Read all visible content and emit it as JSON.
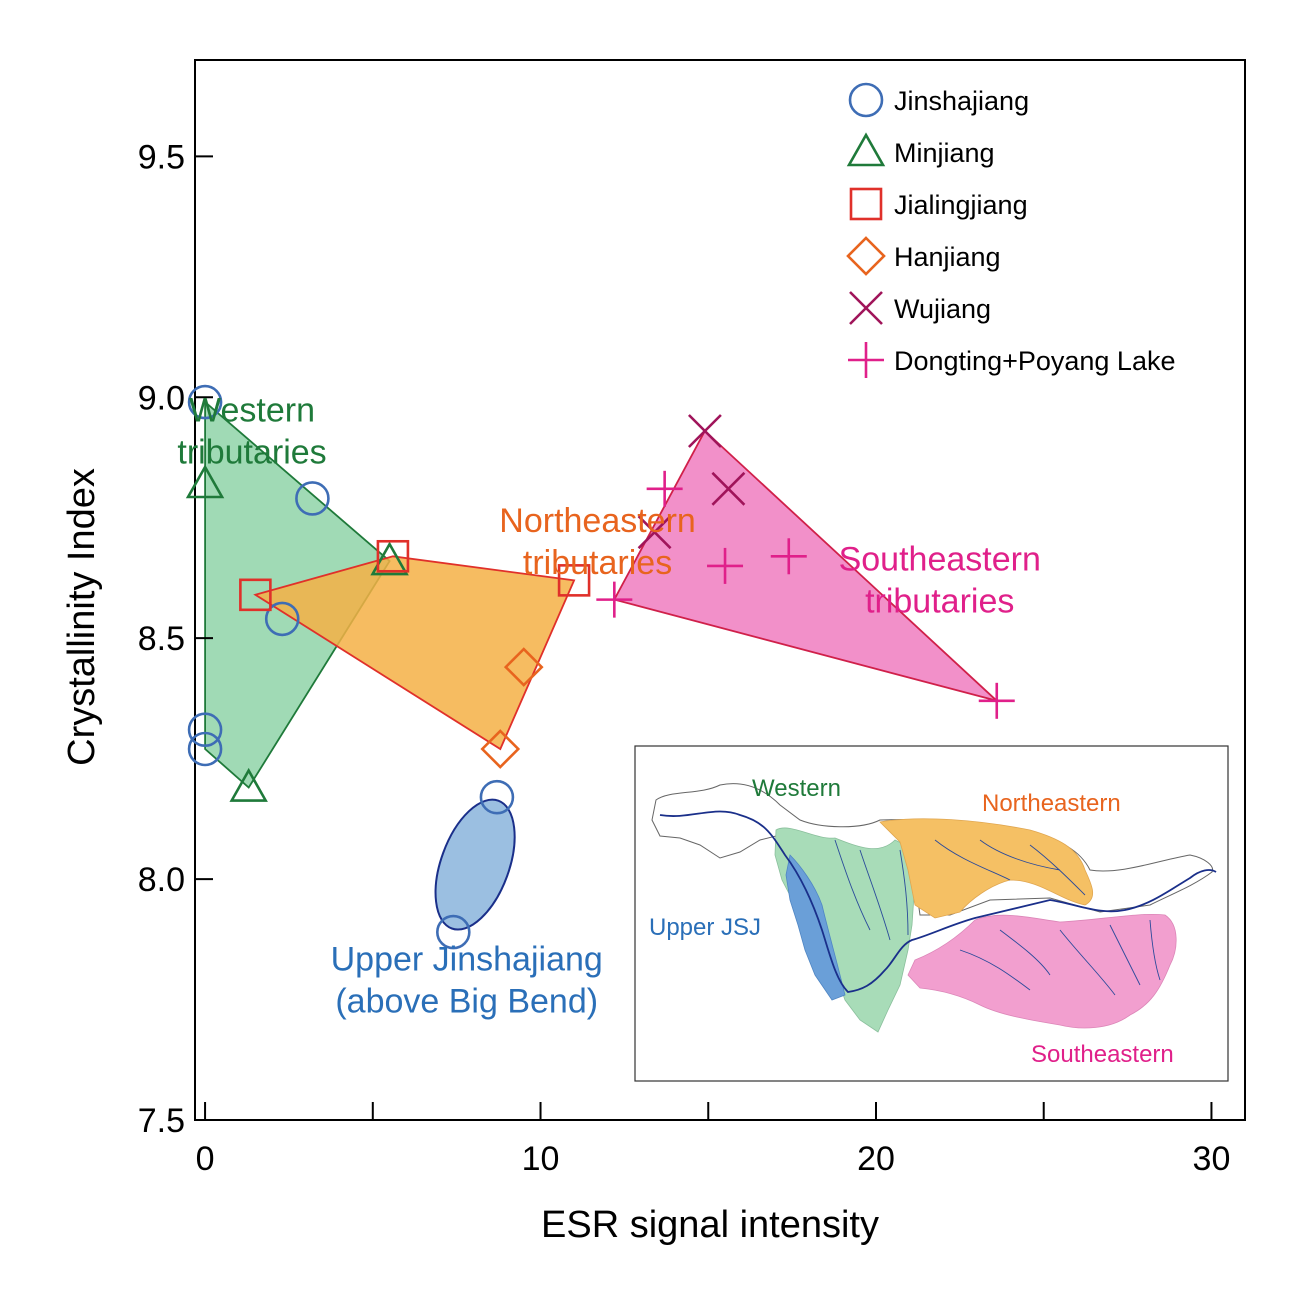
{
  "chart_data": {
    "type": "scatter",
    "xlabel": "ESR signal intensity",
    "ylabel": "Crystallinity Index",
    "xlim": [
      -0.3,
      31
    ],
    "ylim": [
      7.5,
      9.7
    ],
    "x_ticks": [
      0,
      10,
      20,
      30
    ],
    "x_minor_ticks": [
      5,
      15,
      25
    ],
    "y_ticks": [
      7.5,
      8.0,
      8.5,
      9.0,
      9.5
    ],
    "x_tick_labels": [
      "0",
      "10",
      "20",
      "30"
    ],
    "y_tick_labels": [
      "7.5",
      "8.0",
      "8.5",
      "9.0",
      "9.5"
    ],
    "grid": false,
    "legend_position": "top-right",
    "series": [
      {
        "name": "Jinshajiang",
        "marker": "circle",
        "color": "#3e6db5",
        "points": [
          [
            0.0,
            8.99
          ],
          [
            3.2,
            8.79
          ],
          [
            2.3,
            8.54
          ],
          [
            0.0,
            8.31
          ],
          [
            0.0,
            8.27
          ],
          [
            8.7,
            8.17
          ],
          [
            7.4,
            7.89
          ]
        ]
      },
      {
        "name": "Minjiang",
        "marker": "triangle",
        "color": "#1f7a3a",
        "points": [
          [
            0.0,
            8.82
          ],
          [
            5.5,
            8.66
          ],
          [
            1.3,
            8.19
          ]
        ]
      },
      {
        "name": "Jialingjiang",
        "marker": "square",
        "color": "#e0302a",
        "points": [
          [
            1.5,
            8.59
          ],
          [
            5.6,
            8.67
          ],
          [
            11.0,
            8.62
          ]
        ]
      },
      {
        "name": "Hanjiang",
        "marker": "diamond",
        "color": "#e8641e",
        "points": [
          [
            9.5,
            8.44
          ],
          [
            8.8,
            8.27
          ]
        ]
      },
      {
        "name": "Wujiang",
        "marker": "x",
        "color": "#a0145a",
        "points": [
          [
            14.9,
            8.93
          ],
          [
            13.4,
            8.72
          ],
          [
            15.6,
            8.81
          ]
        ]
      },
      {
        "name": "Dongting+Poyang Lake",
        "marker": "plus",
        "color": "#e0208a",
        "points": [
          [
            13.7,
            8.81
          ],
          [
            15.5,
            8.65
          ],
          [
            17.4,
            8.67
          ],
          [
            12.2,
            8.58
          ],
          [
            23.6,
            8.37
          ]
        ]
      }
    ],
    "regions": [
      {
        "label_lines": [
          "Western",
          "tributaries"
        ],
        "color": "#1f7a3a",
        "fill": "#8fd4a8",
        "stroke": "#1f7a3a",
        "polygon": [
          [
            0.0,
            8.99
          ],
          [
            5.5,
            8.66
          ],
          [
            1.3,
            8.19
          ],
          [
            0.0,
            8.27
          ]
        ],
        "label_anchor": [
          1.4,
          8.95
        ]
      },
      {
        "label_lines": [
          "Northeastern",
          "tributaries"
        ],
        "color": "#e8641e",
        "fill": "#f5b045",
        "stroke": "#e0302a",
        "polygon": [
          [
            1.5,
            8.59
          ],
          [
            5.6,
            8.67
          ],
          [
            11.0,
            8.62
          ],
          [
            8.8,
            8.27
          ]
        ],
        "label_anchor": [
          11.7,
          8.72
        ]
      },
      {
        "label_lines": [
          "Southeastern",
          "tributaries"
        ],
        "color": "#e0208a",
        "fill": "#f07cbf",
        "stroke": "#d0204a",
        "polygon": [
          [
            14.9,
            8.93
          ],
          [
            23.6,
            8.37
          ],
          [
            12.2,
            8.58
          ]
        ],
        "label_anchor": [
          21.9,
          8.64
        ]
      },
      {
        "label_lines": [
          "Upper Jinshajiang",
          "(above Big Bend)"
        ],
        "color": "#2a6fb8",
        "fill": "#8ab4dc",
        "stroke": "#1a2f8a",
        "ellipse": {
          "center": [
            8.05,
            8.03
          ],
          "rx_data": 0.95,
          "ry_data": 0.185,
          "angle_deg": 20
        },
        "label_anchor": [
          7.8,
          7.81
        ]
      }
    ],
    "inset_map": {
      "labels": {
        "western": "Western",
        "northeastern": "Northeastern",
        "upper_jsj": "Upper JSJ",
        "southeastern": "Southeastern"
      },
      "colors": {
        "western": "#1f7a3a",
        "western_fill": "#a8dcb8",
        "northeastern": "#e8641e",
        "northeastern_fill": "#f5c064",
        "upper_jsj": "#2a6fb8",
        "upper_jsj_fill": "#6a9fd8",
        "southeastern": "#e0208a",
        "southeastern_fill": "#f29fcf",
        "river": "#1a2f8a"
      }
    }
  }
}
